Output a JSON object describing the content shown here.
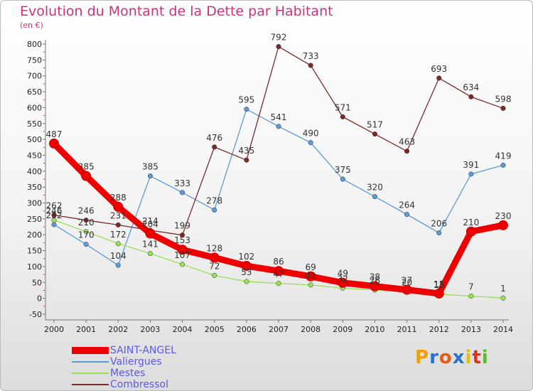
{
  "header": {
    "title": "Evolution du Montant de la Dette par Habitant",
    "unit": "(en €)"
  },
  "logo": {
    "text": "Proxiti",
    "colors": [
      "#f0a000",
      "#2a6fd1",
      "#e85a10",
      "#2a6fd1",
      "#e2c000",
      "#e03020",
      "#5ab82c"
    ]
  },
  "chart_data": {
    "type": "line",
    "title": "Evolution du Montant de la Dette par Habitant",
    "ylabel": "(en €)",
    "xlabel": "",
    "x": [
      2000,
      2001,
      2002,
      2003,
      2004,
      2005,
      2006,
      2007,
      2008,
      2009,
      2010,
      2011,
      2012,
      2013,
      2014
    ],
    "ylim": [
      -50,
      800
    ],
    "yticks": [
      -50,
      0,
      50,
      100,
      150,
      200,
      250,
      300,
      350,
      400,
      450,
      500,
      550,
      600,
      650,
      700,
      750,
      800
    ],
    "grid": false,
    "legend_position": "bottom-left",
    "series": [
      {
        "name": "SAINT-ANGEL",
        "color": "#ee0000",
        "values": [
          487,
          385,
          288,
          204,
          153,
          128,
          102,
          86,
          69,
          49,
          38,
          27,
          15,
          210,
          230
        ],
        "emphasis": true
      },
      {
        "name": "Valiergues",
        "color": "#5b9bd5",
        "values": [
          232,
          170,
          104,
          385,
          333,
          278,
          595,
          541,
          490,
          375,
          320,
          264,
          206,
          391,
          419
        ],
        "emphasis": false
      },
      {
        "name": "Mestes",
        "color": "#99e055",
        "values": [
          246,
          210,
          172,
          141,
          107,
          72,
          53,
          47,
          42,
          32,
          26,
          20,
          13,
          7,
          1
        ],
        "emphasis": false
      },
      {
        "name": "Combressol",
        "color": "#7b2a2a",
        "values": [
          262,
          246,
          231,
          214,
          199,
          476,
          435,
          792,
          733,
          571,
          517,
          463,
          693,
          634,
          598
        ],
        "emphasis": false,
        "segments": [
          [
            0,
            4
          ],
          [
            4,
            14
          ]
        ]
      }
    ],
    "data_labels": [
      {
        "text": "487",
        "x": 2000,
        "y": 487,
        "series": "SAINT-ANGEL"
      },
      {
        "text": "385",
        "x": 2001,
        "y": 385,
        "series": "SAINT-ANGEL"
      },
      {
        "text": "288",
        "x": 2002,
        "y": 288,
        "series": "SAINT-ANGEL"
      },
      {
        "text": "204",
        "x": 2003,
        "y": 204,
        "series": "SAINT-ANGEL"
      },
      {
        "text": "153",
        "x": 2004,
        "y": 153,
        "series": "SAINT-ANGEL"
      },
      {
        "text": "128",
        "x": 2005,
        "y": 128,
        "series": "SAINT-ANGEL"
      },
      {
        "text": "102",
        "x": 2006,
        "y": 102,
        "series": "SAINT-ANGEL"
      },
      {
        "text": "86",
        "x": 2007,
        "y": 86,
        "series": "SAINT-ANGEL"
      },
      {
        "text": "69",
        "x": 2008,
        "y": 69,
        "series": "SAINT-ANGEL"
      },
      {
        "text": "49",
        "x": 2009,
        "y": 49,
        "series": "SAINT-ANGEL"
      },
      {
        "text": "38",
        "x": 2010,
        "y": 38,
        "series": "SAINT-ANGEL"
      },
      {
        "text": "27",
        "x": 2011,
        "y": 27,
        "series": "SAINT-ANGEL"
      },
      {
        "text": "15",
        "x": 2012,
        "y": 15,
        "series": "SAINT-ANGEL"
      },
      {
        "text": "210",
        "x": 2013,
        "y": 210,
        "series": "SAINT-ANGEL"
      },
      {
        "text": "230",
        "x": 2014,
        "y": 230,
        "series": "SAINT-ANGEL"
      },
      {
        "text": "232",
        "x": 2000,
        "y": 232,
        "series": "Valiergues"
      },
      {
        "text": "170",
        "x": 2001,
        "y": 170,
        "series": "Valiergues"
      },
      {
        "text": "104",
        "x": 2002,
        "y": 104,
        "series": "Valiergues"
      },
      {
        "text": "385",
        "x": 2003,
        "y": 385,
        "series": "Valiergues"
      },
      {
        "text": "333",
        "x": 2004,
        "y": 333,
        "series": "Valiergues"
      },
      {
        "text": "278",
        "x": 2005,
        "y": 278,
        "series": "Valiergues"
      },
      {
        "text": "595",
        "x": 2006,
        "y": 595,
        "series": "Valiergues"
      },
      {
        "text": "541",
        "x": 2007,
        "y": 541,
        "series": "Valiergues"
      },
      {
        "text": "490",
        "x": 2008,
        "y": 490,
        "series": "Valiergues"
      },
      {
        "text": "375",
        "x": 2009,
        "y": 375,
        "series": "Valiergues"
      },
      {
        "text": "320",
        "x": 2010,
        "y": 320,
        "series": "Valiergues"
      },
      {
        "text": "264",
        "x": 2011,
        "y": 264,
        "series": "Valiergues"
      },
      {
        "text": "206",
        "x": 2012,
        "y": 206,
        "series": "Valiergues"
      },
      {
        "text": "391",
        "x": 2013,
        "y": 391,
        "series": "Valiergues"
      },
      {
        "text": "419",
        "x": 2014,
        "y": 419,
        "series": "Valiergues"
      },
      {
        "text": "246",
        "x": 2000,
        "y": 246,
        "series": "Mestes"
      },
      {
        "text": "210",
        "x": 2001,
        "y": 210,
        "series": "Mestes"
      },
      {
        "text": "172",
        "x": 2002,
        "y": 172,
        "series": "Mestes"
      },
      {
        "text": "141",
        "x": 2003,
        "y": 141,
        "series": "Mestes"
      },
      {
        "text": "107",
        "x": 2004,
        "y": 107,
        "series": "Mestes"
      },
      {
        "text": "72",
        "x": 2005,
        "y": 72,
        "series": "Mestes"
      },
      {
        "text": "53",
        "x": 2006,
        "y": 53,
        "series": "Mestes"
      },
      {
        "text": "47",
        "x": 2007,
        "y": 47,
        "series": "Mestes"
      },
      {
        "text": "42",
        "x": 2008,
        "y": 42,
        "series": "Mestes"
      },
      {
        "text": "32",
        "x": 2009,
        "y": 32,
        "series": "Mestes"
      },
      {
        "text": "26",
        "x": 2010,
        "y": 26,
        "series": "Mestes"
      },
      {
        "text": "20",
        "x": 2011,
        "y": 20,
        "series": "Mestes"
      },
      {
        "text": "13",
        "x": 2012,
        "y": 13,
        "series": "Mestes"
      },
      {
        "text": "7",
        "x": 2013,
        "y": 7,
        "series": "Mestes"
      },
      {
        "text": "1",
        "x": 2014,
        "y": 1,
        "series": "Mestes"
      },
      {
        "text": "262",
        "x": 2000,
        "y": 262,
        "series": "Combressol"
      },
      {
        "text": "246",
        "x": 2001,
        "y": 246,
        "series": "Combressol"
      },
      {
        "text": "231",
        "x": 2002,
        "y": 231,
        "series": "Combressol"
      },
      {
        "text": "214",
        "x": 2003,
        "y": 214,
        "series": "Combressol"
      },
      {
        "text": "199",
        "x": 2004,
        "y": 199,
        "series": "Combressol"
      },
      {
        "text": "476",
        "x": 2005,
        "y": 476,
        "series": "Combressol"
      },
      {
        "text": "435",
        "x": 2006,
        "y": 435,
        "series": "Combressol"
      },
      {
        "text": "792",
        "x": 2007,
        "y": 792,
        "series": "Combressol"
      },
      {
        "text": "733",
        "x": 2008,
        "y": 733,
        "series": "Combressol"
      },
      {
        "text": "571",
        "x": 2009,
        "y": 571,
        "series": "Combressol"
      },
      {
        "text": "517",
        "x": 2010,
        "y": 517,
        "series": "Combressol"
      },
      {
        "text": "463",
        "x": 2011,
        "y": 463,
        "series": "Combressol"
      },
      {
        "text": "693",
        "x": 2012,
        "y": 693,
        "series": "Combressol"
      },
      {
        "text": "634",
        "x": 2013,
        "y": 634,
        "series": "Combressol"
      },
      {
        "text": "598",
        "x": 2014,
        "y": 598,
        "series": "Combressol"
      }
    ]
  }
}
